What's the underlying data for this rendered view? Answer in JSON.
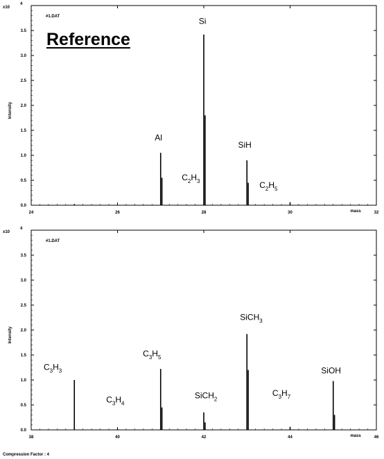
{
  "footer": {
    "compression": "Compression Factor : 4"
  },
  "chart_data": [
    {
      "type": "bar",
      "file_label": "#1.DAT",
      "title_badge": "Reference",
      "exponent_label": "x10",
      "exponent_power": "4",
      "ylabel": "Intensity",
      "xlabel": "mass",
      "xlim": [
        24,
        32
      ],
      "ylim": [
        0,
        4.0
      ],
      "x_ticks": [
        "24",
        "26",
        "28",
        "30",
        "32"
      ],
      "y_ticks": [
        "0.0",
        "0.5",
        "1.0",
        "1.5",
        "2.0",
        "2.5",
        "3.0",
        "3.5"
      ],
      "peaks": [
        {
          "x": 25.0,
          "y": 0.02
        },
        {
          "x": 27.0,
          "y": 1.05
        },
        {
          "x": 27.03,
          "y": 0.55
        },
        {
          "x": 28.0,
          "y": 3.42
        },
        {
          "x": 28.03,
          "y": 1.8
        },
        {
          "x": 29.0,
          "y": 0.9
        },
        {
          "x": 29.03,
          "y": 0.45
        },
        {
          "x": 30.0,
          "y": 0.06
        }
      ],
      "annotations": [
        {
          "name": "al",
          "base": "Al",
          "parts": [],
          "x": 26.95,
          "y": 1.3
        },
        {
          "name": "si",
          "base": "Si",
          "parts": [],
          "x": 27.97,
          "y": 3.63
        },
        {
          "name": "c2h3",
          "base": "C",
          "parts": [
            [
              "2",
              "H"
            ],
            [
              "3",
              ""
            ]
          ],
          "x": 27.7,
          "y": 0.5
        },
        {
          "name": "sih",
          "base": "SiH",
          "parts": [],
          "x": 28.95,
          "y": 1.15
        },
        {
          "name": "c2h5",
          "base": "C",
          "parts": [
            [
              "2",
              "H"
            ],
            [
              "5",
              ""
            ]
          ],
          "x": 29.5,
          "y": 0.35
        }
      ]
    },
    {
      "type": "bar",
      "file_label": "#1.DAT",
      "exponent_label": "x10",
      "exponent_power": "4",
      "ylabel": "Intensity",
      "xlabel": "mass",
      "xlim": [
        38,
        46
      ],
      "ylim": [
        0,
        4.0
      ],
      "x_ticks": [
        "38",
        "40",
        "42",
        "44",
        "46"
      ],
      "y_ticks": [
        "0.0",
        "0.5",
        "1.0",
        "1.5",
        "2.0",
        "2.5",
        "3.0",
        "3.5"
      ],
      "peaks": [
        {
          "x": 39.0,
          "y": 1.0
        },
        {
          "x": 40.0,
          "y": 0.02
        },
        {
          "x": 41.0,
          "y": 1.22
        },
        {
          "x": 41.03,
          "y": 0.45
        },
        {
          "x": 42.0,
          "y": 0.35
        },
        {
          "x": 42.03,
          "y": 0.15
        },
        {
          "x": 43.0,
          "y": 1.92
        },
        {
          "x": 43.03,
          "y": 1.2
        },
        {
          "x": 44.0,
          "y": 0.06
        },
        {
          "x": 45.0,
          "y": 0.98
        },
        {
          "x": 45.03,
          "y": 0.3
        }
      ],
      "annotations": [
        {
          "name": "c3h3",
          "base": "C",
          "parts": [
            [
              "3",
              "H"
            ],
            [
              "3",
              ""
            ]
          ],
          "x": 38.5,
          "y": 1.2
        },
        {
          "name": "c3h4",
          "base": "C",
          "parts": [
            [
              "3",
              "H"
            ],
            [
              "4",
              ""
            ]
          ],
          "x": 39.95,
          "y": 0.55
        },
        {
          "name": "c3h5",
          "base": "C",
          "parts": [
            [
              "3",
              "H"
            ],
            [
              "5",
              ""
            ]
          ],
          "x": 40.8,
          "y": 1.47
        },
        {
          "name": "sich2",
          "base": "SiCH",
          "parts": [
            [
              "2",
              ""
            ]
          ],
          "x": 42.05,
          "y": 0.63
        },
        {
          "name": "sich3",
          "base": "SiCH",
          "parts": [
            [
              "3",
              ""
            ]
          ],
          "x": 43.1,
          "y": 2.2
        },
        {
          "name": "c3h7",
          "base": "C",
          "parts": [
            [
              "3",
              "H"
            ],
            [
              "7",
              ""
            ]
          ],
          "x": 43.8,
          "y": 0.68
        },
        {
          "name": "sioh",
          "base": "SiOH",
          "parts": [],
          "x": 44.95,
          "y": 1.13
        }
      ]
    }
  ]
}
